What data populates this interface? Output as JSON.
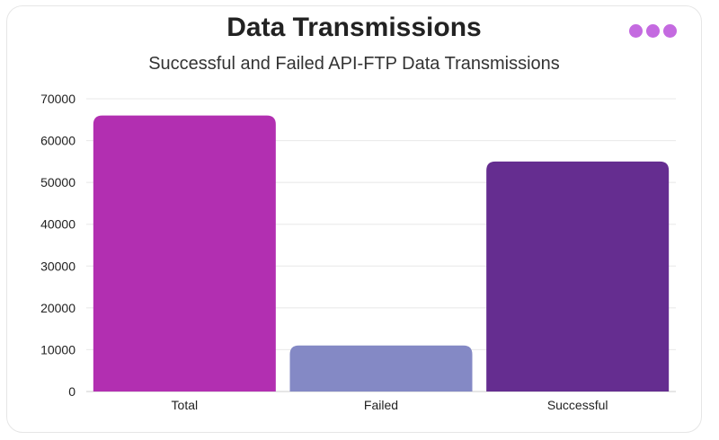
{
  "header": {
    "title": "Data Transmissions",
    "subtitle": "Successful and Failed API-FTP Data Transmissions"
  },
  "menu": {
    "icon": "more-dots-icon",
    "dot_color": "#c46ae0"
  },
  "chart_data": {
    "type": "bar",
    "title": "Data Transmissions",
    "subtitle": "Successful and Failed API-FTP Data Transmissions",
    "categories": [
      "Total",
      "Failed",
      "Successful"
    ],
    "values": [
      66000,
      11000,
      55000
    ],
    "colors": [
      "#b22fb1",
      "#8489c5",
      "#652d90"
    ],
    "xlabel": "",
    "ylabel": "",
    "ylim": [
      0,
      70000
    ],
    "yticks": [
      0,
      10000,
      20000,
      30000,
      40000,
      50000,
      60000,
      70000
    ],
    "ytick_labels": [
      "0",
      "10000",
      "20000",
      "30000",
      "40000",
      "50000",
      "60000",
      "70000"
    ],
    "grid": true,
    "legend": "none"
  }
}
